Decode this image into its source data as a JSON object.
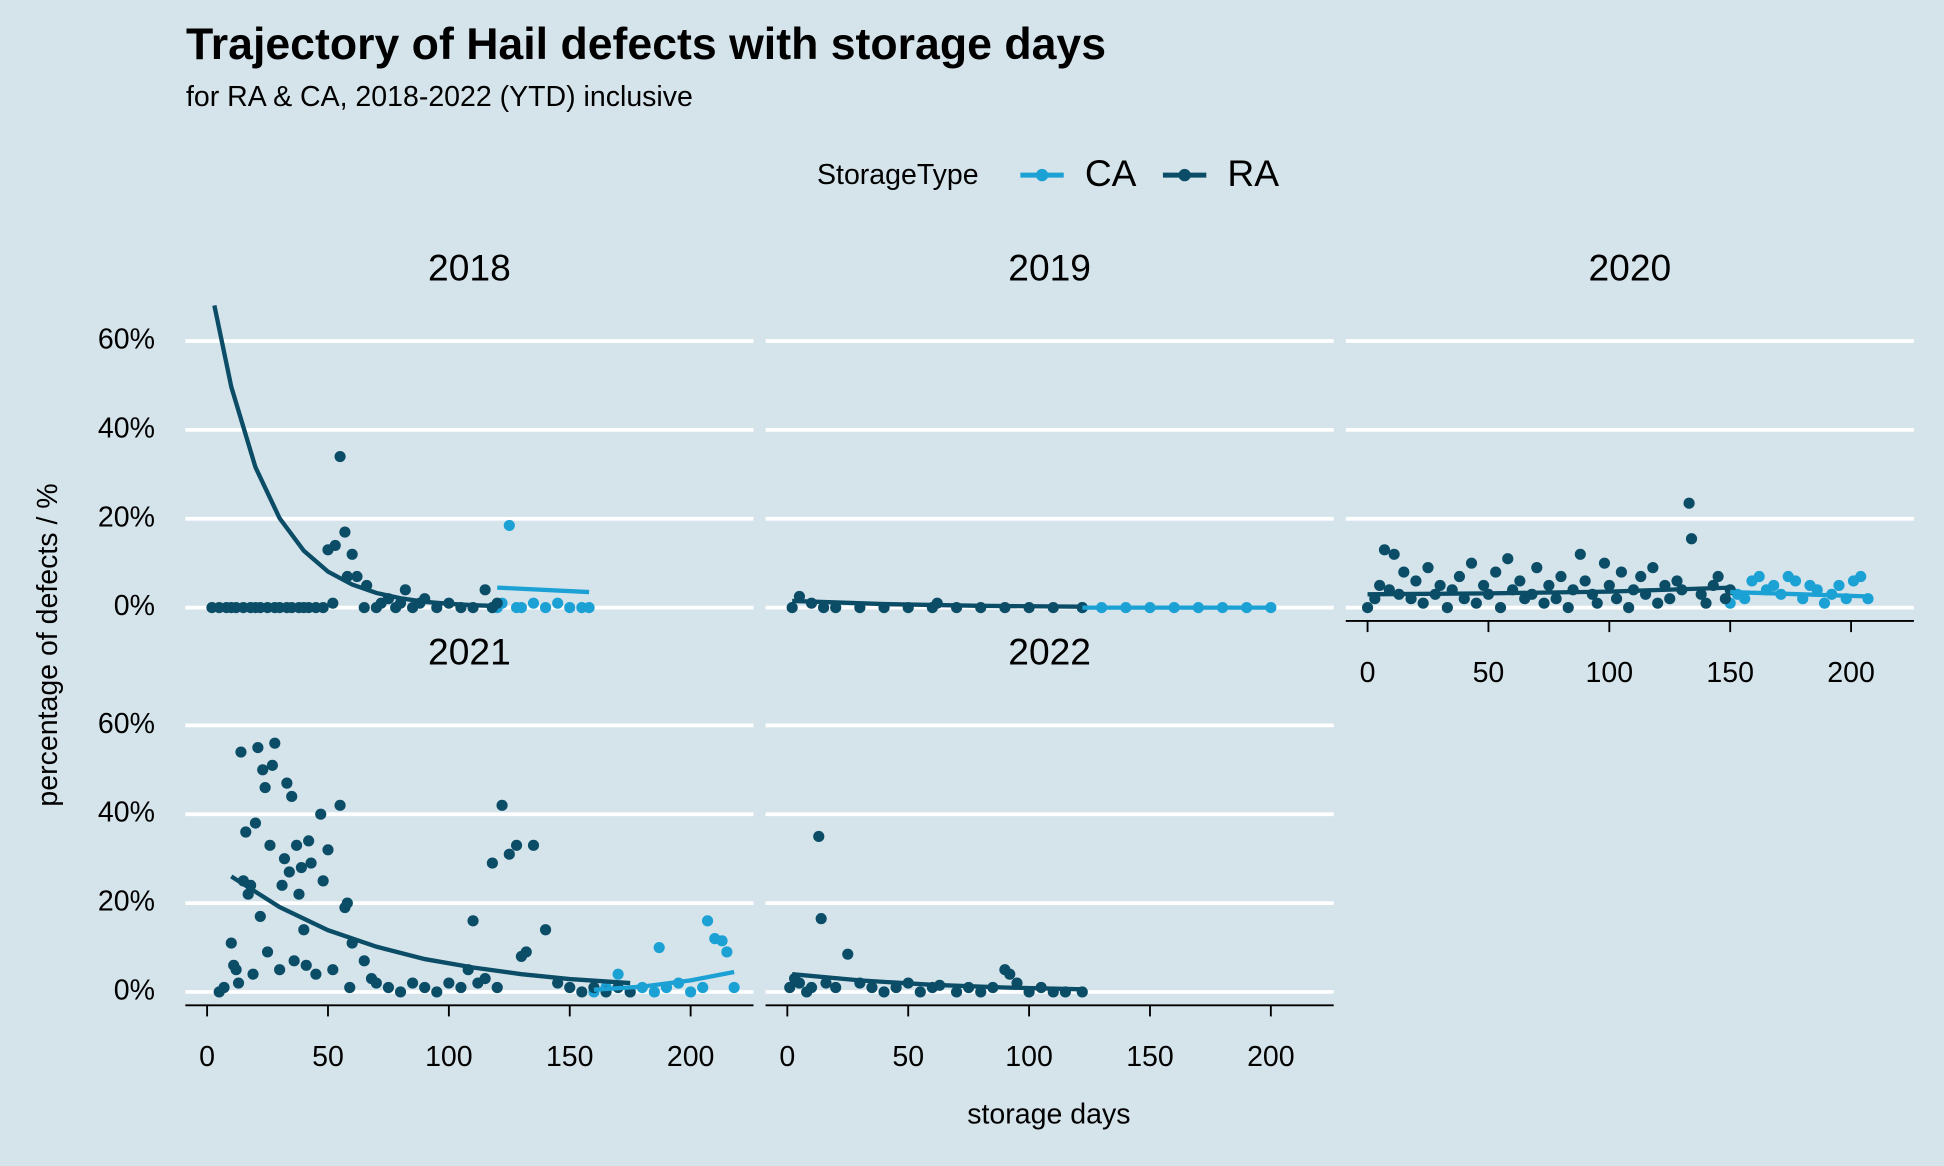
{
  "figure": {
    "title": "Trajectory of Hail defects with storage days",
    "subtitle": "for RA & CA, 2018-2022 (YTD) inclusive",
    "x_label": "storage days",
    "y_label": "percentage of defects / %",
    "legend_title": "StorageType",
    "xlim": [
      -9,
      226
    ],
    "ylim": [
      -3,
      70
    ],
    "xticks": [
      0,
      50,
      100,
      150,
      200
    ],
    "yticks": [
      {
        "value": 0,
        "label": "0%"
      },
      {
        "value": 20,
        "label": "20%"
      },
      {
        "value": 40,
        "label": "40%"
      },
      {
        "value": 60,
        "label": "60%"
      }
    ],
    "grid": true
  },
  "chart_data": [
    {
      "type": "scatter",
      "title": "2018",
      "series": [
        {
          "name": "CA",
          "color": "#1ba1d4",
          "x": [
            118,
            120,
            122,
            125,
            128,
            130,
            135,
            140,
            145,
            150,
            155,
            158
          ],
          "values": [
            0,
            0,
            1,
            18.5,
            0,
            0,
            1,
            0,
            1,
            0,
            0,
            0
          ],
          "fit_x": [
            120,
            158
          ],
          "fit_values": [
            4.5,
            3.5
          ]
        },
        {
          "name": "RA",
          "color": "#0b4c66",
          "x": [
            2,
            5,
            8,
            10,
            12,
            15,
            18,
            20,
            22,
            25,
            28,
            30,
            33,
            35,
            38,
            40,
            42,
            45,
            48,
            50,
            52,
            53,
            55,
            57,
            58,
            60,
            62,
            65,
            66,
            70,
            72,
            75,
            78,
            80,
            82,
            85,
            88,
            90,
            95,
            100,
            105,
            110,
            115,
            118,
            120
          ],
          "values": [
            0,
            0,
            0,
            0,
            0,
            0,
            0,
            0,
            0,
            0,
            0,
            0,
            0,
            0,
            0,
            0,
            0,
            0,
            0,
            13,
            1,
            14,
            34,
            17,
            7,
            12,
            7,
            0,
            5,
            0,
            1,
            2,
            0,
            1,
            4,
            0,
            1,
            2,
            0,
            1,
            0,
            0,
            4,
            0,
            1
          ],
          "fit_x": [
            3,
            10,
            20,
            30,
            40,
            50,
            60,
            70,
            80,
            90,
            100,
            110,
            120
          ],
          "fit_values": [
            68,
            49.7,
            31.6,
            20.1,
            12.8,
            8.1,
            5.2,
            3.3,
            2.1,
            1.3,
            0.86,
            0.55,
            0.35
          ]
        }
      ]
    },
    {
      "type": "scatter",
      "title": "2019",
      "series": [
        {
          "name": "CA",
          "color": "#1ba1d4",
          "x": [
            122,
            130,
            140,
            150,
            160,
            170,
            180,
            190,
            200
          ],
          "values": [
            0,
            0,
            0,
            0,
            0,
            0,
            0,
            0,
            0
          ],
          "fit_x": [
            122,
            200
          ],
          "fit_values": [
            0,
            0
          ]
        },
        {
          "name": "RA",
          "color": "#0b4c66",
          "x": [
            2,
            5,
            10,
            15,
            20,
            30,
            40,
            50,
            60,
            62,
            70,
            80,
            90,
            100,
            110,
            122
          ],
          "values": [
            0,
            2.5,
            1,
            0,
            0,
            0,
            0,
            0,
            0,
            1,
            0,
            0,
            0,
            0,
            0,
            0
          ],
          "fit_x": [
            2,
            40,
            80,
            122
          ],
          "fit_values": [
            1.5,
            0.8,
            0.4,
            0.2
          ]
        }
      ]
    },
    {
      "type": "scatter",
      "title": "2020",
      "series": [
        {
          "name": "CA",
          "color": "#1ba1d4",
          "x": [
            150,
            153,
            156,
            159,
            162,
            165,
            168,
            171,
            174,
            177,
            180,
            183,
            186,
            189,
            192,
            195,
            198,
            201,
            204,
            207
          ],
          "values": [
            1,
            3,
            2,
            6,
            7,
            4,
            5,
            3,
            7,
            6,
            2,
            5,
            4,
            1,
            3,
            5,
            2,
            6,
            7,
            2
          ],
          "fit_x": [
            150,
            208
          ],
          "fit_values": [
            3.5,
            2.5
          ]
        },
        {
          "name": "RA",
          "color": "#0b4c66",
          "x": [
            0,
            3,
            5,
            7,
            9,
            11,
            13,
            15,
            18,
            20,
            23,
            25,
            28,
            30,
            33,
            35,
            38,
            40,
            43,
            45,
            48,
            50,
            53,
            55,
            58,
            60,
            63,
            65,
            68,
            70,
            73,
            75,
            78,
            80,
            83,
            85,
            88,
            90,
            93,
            95,
            98,
            100,
            103,
            105,
            108,
            110,
            113,
            115,
            118,
            120,
            123,
            125,
            128,
            130,
            133,
            134,
            138,
            140,
            143,
            145,
            148,
            150
          ],
          "values": [
            0,
            2,
            5,
            13,
            4,
            12,
            3,
            8,
            2,
            6,
            1,
            9,
            3,
            5,
            0,
            4,
            7,
            2,
            10,
            1,
            5,
            3,
            8,
            0,
            11,
            4,
            6,
            2,
            3,
            9,
            1,
            5,
            2,
            7,
            0,
            4,
            12,
            6,
            3,
            1,
            10,
            5,
            2,
            8,
            0,
            4,
            7,
            3,
            9,
            1,
            5,
            2,
            6,
            4,
            23.5,
            15.5,
            3,
            1,
            5,
            7,
            2,
            4
          ],
          "fit_x": [
            0,
            50,
            100,
            150
          ],
          "fit_values": [
            3,
            3.2,
            3.6,
            4.5
          ]
        }
      ]
    },
    {
      "type": "scatter",
      "title": "2021",
      "series": [
        {
          "name": "CA",
          "color": "#1ba1d4",
          "x": [
            160,
            165,
            170,
            175,
            180,
            185,
            187,
            190,
            195,
            200,
            205,
            207,
            210,
            213,
            215,
            218
          ],
          "values": [
            0,
            1,
            4,
            0,
            1,
            0,
            10,
            1,
            2,
            0,
            1,
            16,
            12,
            11.5,
            9,
            1
          ],
          "fit_x": [
            160,
            180,
            200,
            218
          ],
          "fit_values": [
            0.5,
            1.2,
            2.6,
            4.5
          ]
        },
        {
          "name": "RA",
          "color": "#0b4c66",
          "x": [
            5,
            7,
            10,
            11,
            12,
            13,
            14,
            15,
            16,
            17,
            18,
            19,
            20,
            21,
            22,
            23,
            24,
            25,
            26,
            27,
            28,
            30,
            31,
            32,
            33,
            34,
            35,
            36,
            37,
            38,
            39,
            40,
            41,
            42,
            43,
            45,
            47,
            48,
            50,
            52,
            55,
            57,
            58,
            59,
            60,
            65,
            68,
            70,
            75,
            80,
            85,
            90,
            95,
            100,
            105,
            108,
            110,
            112,
            115,
            118,
            120,
            122,
            125,
            128,
            130,
            132,
            135,
            140,
            145,
            150,
            155,
            160,
            165,
            170,
            175
          ],
          "values": [
            0,
            1,
            11,
            6,
            5,
            2,
            54,
            25,
            36,
            22,
            24,
            4,
            38,
            55,
            17,
            50,
            46,
            9,
            33,
            51,
            56,
            5,
            24,
            30,
            47,
            27,
            44,
            7,
            33,
            22,
            28,
            14,
            6,
            34,
            29,
            4,
            40,
            25,
            32,
            5,
            42,
            19,
            20,
            1,
            11,
            7,
            3,
            2,
            1,
            0,
            2,
            1,
            0,
            2,
            1,
            5,
            16,
            2,
            3,
            29,
            1,
            42,
            31,
            33,
            8,
            9,
            33,
            14,
            2,
            1,
            0,
            1,
            0,
            1,
            0
          ],
          "fit_x": [
            10,
            30,
            50,
            70,
            90,
            110,
            130,
            150,
            175
          ],
          "fit_values": [
            26,
            19.1,
            13.9,
            10.2,
            7.4,
            5.5,
            4,
            2.9,
            2
          ]
        }
      ]
    },
    {
      "type": "scatter",
      "title": "2022",
      "series": [
        {
          "name": "RA",
          "color": "#0b4c66",
          "x": [
            1,
            3,
            5,
            8,
            10,
            13,
            14,
            16,
            20,
            25,
            30,
            35,
            40,
            45,
            50,
            55,
            60,
            63,
            70,
            75,
            80,
            85,
            90,
            92,
            95,
            100,
            105,
            110,
            115,
            122
          ],
          "values": [
            1,
            3,
            2,
            0,
            1,
            35,
            16.5,
            2,
            1,
            8.5,
            2,
            1,
            0,
            1,
            2,
            0,
            1,
            1.5,
            0,
            1,
            0,
            1,
            5,
            4,
            2,
            0,
            1,
            0,
            0,
            0
          ],
          "fit_x": [
            2,
            30,
            60,
            90,
            122
          ],
          "fit_values": [
            4,
            2.6,
            1.6,
            1,
            0.6
          ]
        }
      ]
    }
  ]
}
